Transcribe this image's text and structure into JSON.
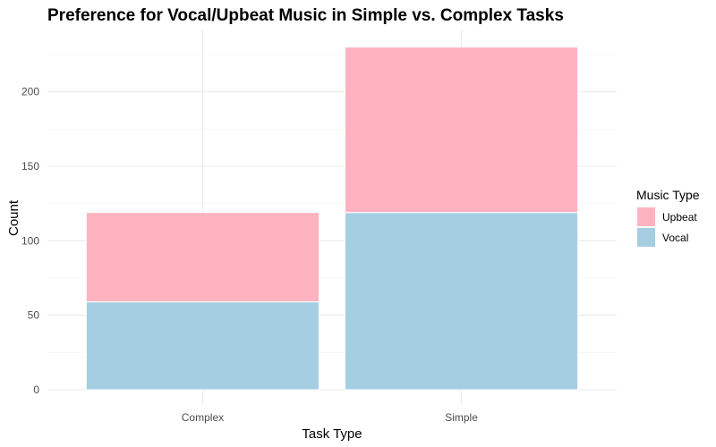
{
  "chart_data": {
    "type": "bar",
    "stacked": true,
    "title": "Preference for Vocal/Upbeat Music in Simple vs. Complex Tasks",
    "xlabel": "Task Type",
    "ylabel": "Count",
    "categories": [
      "Complex",
      "Simple"
    ],
    "series": [
      {
        "name": "Vocal",
        "values": [
          59,
          119
        ],
        "color": "#a6cee3"
      },
      {
        "name": "Upbeat",
        "values": [
          60,
          111
        ],
        "color": "#ffb3c1"
      }
    ],
    "ylim": [
      0,
      230
    ],
    "yticks": [
      0,
      50,
      100,
      150,
      200
    ],
    "grid": true,
    "legend": {
      "title": "Music Type",
      "position": "right",
      "entries": [
        {
          "label": "Upbeat",
          "color": "#ffb3c1"
        },
        {
          "label": "Vocal",
          "color": "#a6cee3"
        }
      ]
    }
  }
}
